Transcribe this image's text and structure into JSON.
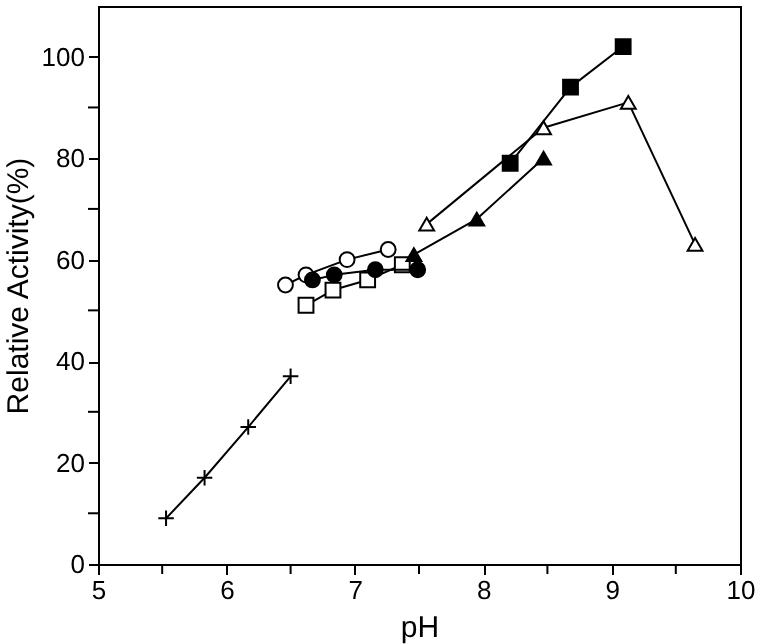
{
  "chart_data": {
    "type": "line",
    "xlabel": "pH",
    "ylabel": "Relative Activity(%)",
    "xlim": [
      5,
      10
    ],
    "ylim": [
      0,
      110
    ],
    "xticks": [
      5,
      {
        "value": 5.5,
        "label": null
      },
      6,
      {
        "value": 6.5,
        "label": null
      },
      7,
      {
        "value": 7.5,
        "label": null
      },
      8,
      {
        "value": 8.5,
        "label": null
      },
      9,
      {
        "value": 9.5,
        "label": null
      },
      10
    ],
    "yticks": [
      0,
      {
        "value": 10,
        "label": null
      },
      20,
      {
        "value": 30,
        "label": null
      },
      40,
      {
        "value": 50,
        "label": null
      },
      60,
      {
        "value": 70,
        "label": null
      },
      80,
      {
        "value": 90,
        "label": null
      },
      100
    ],
    "grid": false,
    "line_style": "solid",
    "series": [
      {
        "color": "#000000",
        "marker": "cross",
        "x": [
          5.53,
          5.83,
          6.17,
          6.5
        ],
        "values": [
          9,
          17,
          27,
          37
        ]
      },
      {
        "color": "#000000",
        "marker": "circle-open",
        "x": [
          6.46,
          6.62,
          6.94,
          7.26
        ],
        "values": [
          55,
          57,
          60,
          62
        ]
      },
      {
        "color": "#000000",
        "marker": "square-open",
        "x": [
          6.62,
          6.83,
          7.1,
          7.37
        ],
        "values": [
          51,
          54,
          56,
          59
        ]
      },
      {
        "color": "#000000",
        "marker": "circle",
        "x": [
          6.67,
          6.84,
          7.16,
          7.49
        ],
        "values": [
          56,
          57,
          58,
          58
        ]
      },
      {
        "color": "#000000",
        "marker": "triangle",
        "x": [
          7.46,
          7.95,
          8.47
        ],
        "values": [
          61,
          68,
          80
        ]
      },
      {
        "color": "#000000",
        "marker": "triangle-open",
        "x": [
          7.56,
          8.47,
          9.13,
          9.65
        ],
        "values": [
          67,
          86,
          91,
          63
        ]
      },
      {
        "color": "#000000",
        "marker": "square",
        "x": [
          8.21,
          8.68,
          9.09
        ],
        "values": [
          79,
          94,
          102
        ]
      }
    ]
  }
}
